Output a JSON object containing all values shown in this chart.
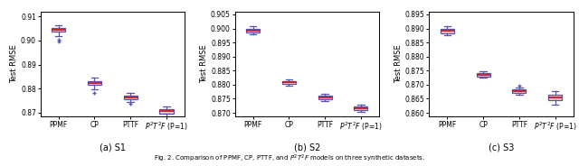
{
  "subplots": [
    {
      "title": "(a) S1",
      "ylabel": "Test RMSE",
      "ylim": [
        0.8685,
        0.912
      ],
      "yticks": [
        0.87,
        0.88,
        0.89,
        0.9,
        0.91
      ],
      "yticklabels": [
        "0.87",
        "0.88",
        "0.89",
        "0.90",
        "0.91"
      ],
      "categories": [
        "PPMF",
        "CP",
        "PTTF",
        "$P^2T^2F$ (P=1)"
      ],
      "boxes": [
        {
          "med": 0.9045,
          "q1": 0.9038,
          "q3": 0.9052,
          "whislo": 0.902,
          "whishi": 0.9063,
          "fliers": [
            0.9002,
            0.8997
          ]
        },
        {
          "med": 0.8822,
          "q1": 0.8814,
          "q3": 0.8832,
          "whislo": 0.8798,
          "whishi": 0.8845,
          "fliers": [
            0.8783
          ]
        },
        {
          "med": 0.8762,
          "q1": 0.8754,
          "q3": 0.8772,
          "whislo": 0.8745,
          "whishi": 0.8782,
          "fliers": [
            0.8735
          ]
        },
        {
          "med": 0.8705,
          "q1": 0.8696,
          "q3": 0.8714,
          "whislo": 0.868,
          "whishi": 0.8724,
          "fliers": []
        }
      ]
    },
    {
      "title": "(b) S2",
      "ylabel": "Test RMSE",
      "ylim": [
        0.8688,
        0.906
      ],
      "yticks": [
        0.87,
        0.875,
        0.88,
        0.885,
        0.89,
        0.895,
        0.9,
        0.905
      ],
      "yticklabels": [
        "0.870",
        "0.875",
        "0.880",
        "0.885",
        "0.890",
        "0.895",
        "0.900",
        "0.905"
      ],
      "categories": [
        "PPMF",
        "CP",
        "PTTF",
        "$P^2T^2F$ (P=1)"
      ],
      "boxes": [
        {
          "med": 0.8993,
          "q1": 0.8986,
          "q3": 0.9,
          "whislo": 0.8978,
          "whishi": 0.9007,
          "fliers": []
        },
        {
          "med": 0.8808,
          "q1": 0.8802,
          "q3": 0.8814,
          "whislo": 0.8796,
          "whishi": 0.882,
          "fliers": []
        },
        {
          "med": 0.8754,
          "q1": 0.8748,
          "q3": 0.876,
          "whislo": 0.8742,
          "whishi": 0.8766,
          "fliers": []
        },
        {
          "med": 0.8716,
          "q1": 0.871,
          "q3": 0.8722,
          "whislo": 0.8703,
          "whishi": 0.8729,
          "fliers": []
        }
      ]
    },
    {
      "title": "(c) S3",
      "ylabel": "Test RMSE",
      "ylim": [
        0.8588,
        0.896
      ],
      "yticks": [
        0.86,
        0.865,
        0.87,
        0.875,
        0.88,
        0.885,
        0.89,
        0.895
      ],
      "yticklabels": [
        "0.860",
        "0.865",
        "0.870",
        "0.875",
        "0.880",
        "0.885",
        "0.890",
        "0.895"
      ],
      "categories": [
        "PPMF",
        "CP",
        "PTTF",
        "$P^2T^2F$ (P=1)"
      ],
      "boxes": [
        {
          "med": 0.8892,
          "q1": 0.8884,
          "q3": 0.89,
          "whislo": 0.8877,
          "whishi": 0.8907,
          "fliers": []
        },
        {
          "med": 0.8736,
          "q1": 0.873,
          "q3": 0.8742,
          "whislo": 0.8725,
          "whishi": 0.8748,
          "fliers": []
        },
        {
          "med": 0.8678,
          "q1": 0.8672,
          "q3": 0.8684,
          "whislo": 0.8663,
          "whishi": 0.8691,
          "fliers": [
            0.8695
          ]
        },
        {
          "med": 0.8655,
          "q1": 0.8645,
          "q3": 0.8665,
          "whislo": 0.863,
          "whishi": 0.8676,
          "fliers": []
        }
      ]
    }
  ],
  "box_facecolor": "#FFBBCC",
  "box_edgecolor": "#5555AA",
  "median_color": "#BB1111",
  "whisker_color": "#5555AA",
  "cap_color": "#5555AA",
  "flier_color": "#5555AA",
  "caption": "Fig. 2. Comparison of PPMF, CP, PTTF, and $P^2T^2F$ models on three synthetic datasets.",
  "figsize": [
    6.4,
    1.84
  ],
  "dpi": 100
}
